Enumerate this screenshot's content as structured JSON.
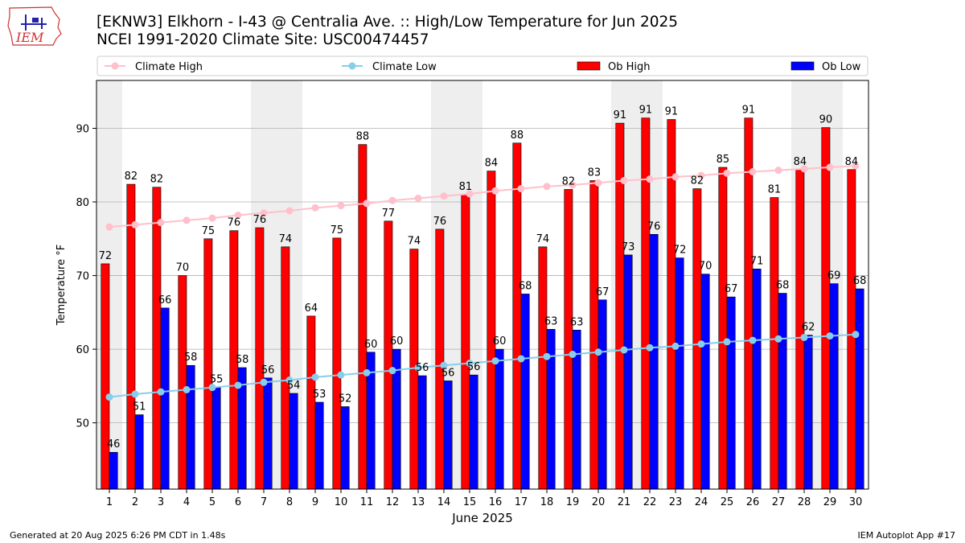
{
  "header": {
    "title": "[EKNW3] Elkhorn - I-43 @ Centralia Ave. :: High/Low Temperature for Jun 2025",
    "subtitle": "NCEI 1991-2020 Climate Site: USC00474457",
    "logo_text": "IEM"
  },
  "footer": {
    "generated": "Generated at 20 Aug 2025 6:26 PM CDT in 1.48s",
    "app": "IEM Autoplot App #17"
  },
  "colors": {
    "ob_high": "#ff0000",
    "ob_low": "#0000ff",
    "climate_high": "#ffc0cb",
    "climate_low": "#87ceeb",
    "weekend_shade": "#eeeeee",
    "grid": "#b0b0b0"
  },
  "chart_data": {
    "type": "bar",
    "title": "[EKNW3] Elkhorn - I-43 @ Centralia Ave. :: High/Low Temperature for Jun 2025",
    "xlabel": "June 2025",
    "ylabel": "Temperature °F",
    "ylim": [
      41,
      96.5
    ],
    "yticks": [
      50,
      60,
      70,
      80,
      90
    ],
    "grid": true,
    "legend_position": "top",
    "categories": [
      "1",
      "2",
      "3",
      "4",
      "5",
      "6",
      "7",
      "8",
      "9",
      "10",
      "11",
      "12",
      "13",
      "14",
      "15",
      "16",
      "17",
      "18",
      "19",
      "20",
      "21",
      "22",
      "23",
      "24",
      "25",
      "26",
      "27",
      "28",
      "29",
      "30"
    ],
    "shaded_days": [
      1,
      7,
      8,
      14,
      15,
      21,
      22,
      28,
      29
    ],
    "series": [
      {
        "name": "Ob High",
        "kind": "bar",
        "values": [
          71.6,
          82.4,
          82.0,
          70.0,
          75.0,
          76.1,
          76.5,
          73.9,
          64.5,
          75.1,
          87.8,
          77.4,
          73.6,
          76.3,
          81.0,
          84.2,
          88.0,
          73.9,
          81.7,
          82.9,
          90.7,
          91.4,
          91.2,
          81.8,
          84.7,
          91.4,
          80.6,
          84.4,
          90.1,
          84.4
        ],
        "labels": [
          "72",
          "82",
          "82",
          "70",
          "75",
          "76",
          "76",
          "74",
          "64",
          "75",
          "88",
          "77",
          "74",
          "76",
          "81",
          "84",
          "88",
          "74",
          "82",
          "83",
          "91",
          "91",
          "91",
          "82",
          "85",
          "91",
          "81",
          "84",
          "90",
          "84"
        ]
      },
      {
        "name": "Ob Low",
        "kind": "bar",
        "values": [
          46.0,
          51.1,
          65.6,
          57.8,
          54.8,
          57.5,
          56.1,
          54.0,
          52.8,
          52.2,
          59.6,
          60.0,
          56.4,
          55.7,
          56.5,
          60.0,
          67.5,
          62.7,
          62.6,
          66.7,
          72.8,
          75.6,
          72.4,
          70.2,
          67.1,
          70.9,
          67.6,
          61.9,
          68.9,
          68.2
        ],
        "labels": [
          "46",
          "51",
          "66",
          "58",
          "55",
          "58",
          "56",
          "54",
          "53",
          "52",
          "60",
          "60",
          "56",
          "56",
          "56",
          "60",
          "68",
          "63",
          "63",
          "67",
          "73",
          "76",
          "72",
          "70",
          "67",
          "71",
          "68",
          "62",
          "69",
          "68"
        ]
      },
      {
        "name": "Climate High",
        "kind": "line",
        "values": [
          76.6,
          76.9,
          77.2,
          77.5,
          77.8,
          78.2,
          78.5,
          78.8,
          79.2,
          79.5,
          79.8,
          80.2,
          80.5,
          80.8,
          81.1,
          81.5,
          81.8,
          82.1,
          82.3,
          82.6,
          82.9,
          83.1,
          83.4,
          83.6,
          83.9,
          84.1,
          84.3,
          84.5,
          84.7,
          84.9
        ]
      },
      {
        "name": "Climate Low",
        "kind": "line",
        "values": [
          53.5,
          53.9,
          54.2,
          54.5,
          54.8,
          55.1,
          55.5,
          55.8,
          56.2,
          56.5,
          56.8,
          57.1,
          57.5,
          57.8,
          58.1,
          58.4,
          58.7,
          59.0,
          59.3,
          59.6,
          59.9,
          60.2,
          60.4,
          60.7,
          61.0,
          61.2,
          61.4,
          61.6,
          61.8,
          62.0
        ]
      }
    ]
  }
}
